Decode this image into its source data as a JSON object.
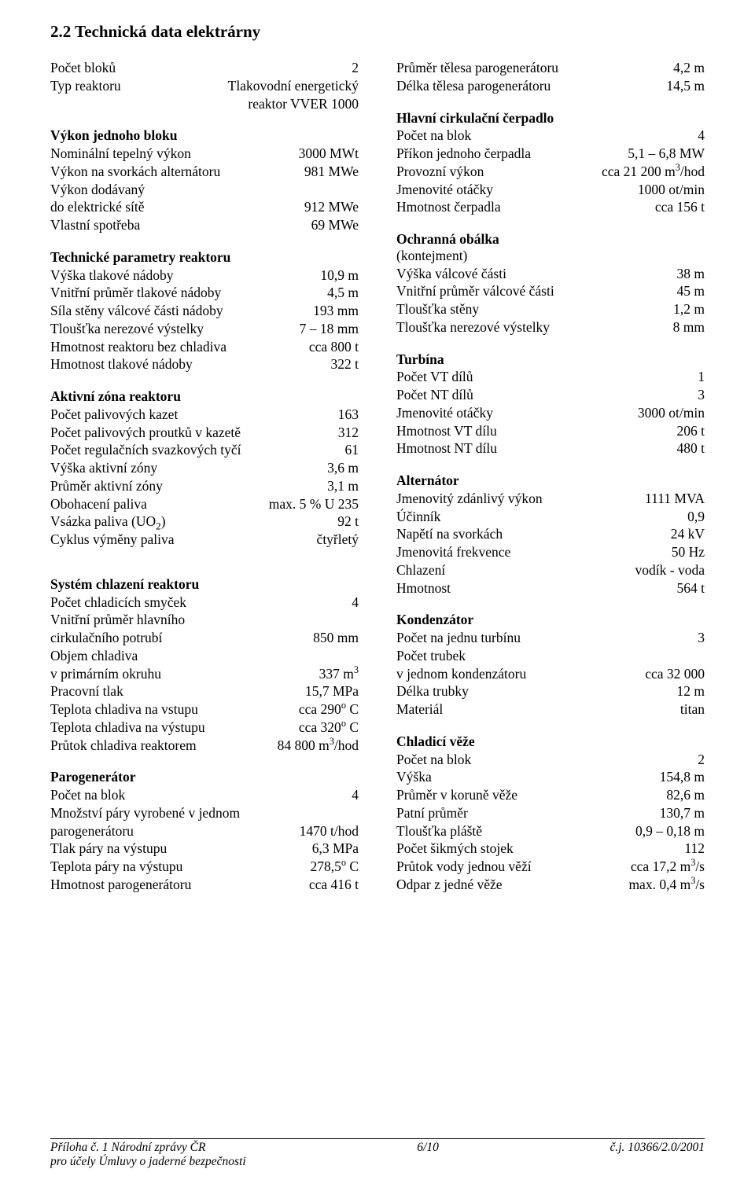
{
  "heading": "2.2   Technická data elektrárny",
  "left": {
    "intro": [
      {
        "label": "Počet bloků",
        "value": "2"
      },
      {
        "label": "Typ reaktoru",
        "value": "Tlakovodní energetický"
      },
      {
        "label": "",
        "value": "reaktor VVER 1000"
      }
    ],
    "vykon_bloku_title": "Výkon jednoho bloku",
    "vykon_bloku": [
      {
        "label": "Nominální tepelný výkon",
        "value": "3000 MWt"
      },
      {
        "label": "Výkon na svorkách alternátoru",
        "value": "981 MWe"
      },
      {
        "label": "Výkon dodávaný",
        "value": ""
      },
      {
        "label": "do elektrické sítě",
        "value": "912 MWe"
      },
      {
        "label": "Vlastní spotřeba",
        "value": "69 MWe"
      }
    ],
    "tech_par_title": "Technické parametry reaktoru",
    "tech_par": [
      {
        "label": "Výška tlakové nádoby",
        "value": "10,9 m"
      },
      {
        "label": "Vnitřní průměr tlakové nádoby",
        "value": "4,5 m"
      },
      {
        "label": "Síla stěny válcové části nádoby",
        "value": "193 mm"
      },
      {
        "label": "Tloušťka nerezové výstelky",
        "value": "7 – 18 mm"
      },
      {
        "label": "Hmotnost reaktoru bez chladiva",
        "value": "cca 800 t"
      },
      {
        "label": "Hmotnost tlakové nádoby",
        "value": "322 t"
      }
    ],
    "aktivni_title": "Aktivní zóna reaktoru",
    "aktivni": [
      {
        "label": "Počet palivových kazet",
        "value": "163"
      },
      {
        "label": "Počet palivových proutků v kazetě",
        "value": "312"
      },
      {
        "label": "Počet regulačních svazkových tyčí",
        "value": "61"
      },
      {
        "label": "Výška aktivní zóny",
        "value": "3,6 m"
      },
      {
        "label": "Průměr aktivní zóny",
        "value": "3,1 m"
      },
      {
        "label": "Obohacení paliva",
        "value": "max. 5 % U 235"
      },
      {
        "label": "Vsázka paliva (UO<sub>2</sub>)",
        "value": "92 t",
        "html": true
      },
      {
        "label": "Cyklus výměny paliva",
        "value": "čtyřletý"
      }
    ],
    "chlaz_title": "Systém chlazení reaktoru",
    "chlaz": [
      {
        "label": "Počet chladicích smyček",
        "value": "4"
      },
      {
        "label": "Vnitřní průměr hlavního",
        "value": ""
      },
      {
        "label": "cirkulačního potrubí",
        "value": "850 mm"
      },
      {
        "label": "Objem chladiva",
        "value": ""
      },
      {
        "label": "v primárním okruhu",
        "value": "337 m<sup>3</sup>",
        "html": true
      },
      {
        "label": "Pracovní tlak",
        "value": "15,7 MPa"
      },
      {
        "label": "Teplota chladiva na vstupu",
        "value": "cca 290<sup>o</sup>  C",
        "html": true
      },
      {
        "label": "Teplota chladiva na výstupu",
        "value": "cca 320<sup>o</sup> C",
        "html": true
      },
      {
        "label": "Průtok chladiva reaktorem",
        "value": "84 800 m<sup>3</sup>/hod",
        "html": true
      }
    ],
    "parogen_title": "Parogenerátor",
    "parogen": [
      {
        "label": "Počet na blok",
        "value": "4"
      },
      {
        "label": "Množství páry vyrobené v jednom",
        "value": ""
      },
      {
        "label": "parogenerátoru",
        "value": "1470 t/hod"
      },
      {
        "label": "Tlak páry na výstupu",
        "value": "6,3 MPa"
      },
      {
        "label": "Teplota páry na výstupu",
        "value": "278,5<sup>o</sup> C",
        "html": true
      },
      {
        "label": "Hmotnost parogenerátoru",
        "value": "cca 416 t"
      }
    ]
  },
  "right": {
    "parogen2": [
      {
        "label": "Průměr tělesa parogenerátoru",
        "value": "4,2 m"
      },
      {
        "label": "Délka tělesa parogenerátoru",
        "value": "14,5 m"
      }
    ],
    "hcc_title": "Hlavní cirkulační čerpadlo",
    "hcc": [
      {
        "label": "Počet na blok",
        "value": "4"
      },
      {
        "label": "Příkon jednoho čerpadla",
        "value": "5,1 – 6,8 MW"
      },
      {
        "label": "Provozní výkon",
        "value": "cca 21 200 m<sup>3</sup>/hod",
        "html": true
      },
      {
        "label": "Jmenovité otáčky",
        "value": "1000 ot/min"
      },
      {
        "label": "Hmotnost čerpadla",
        "value": "cca 156 t"
      }
    ],
    "obalka_title": "Ochranná obálka",
    "obalka_sub": "(kontejment)",
    "obalka": [
      {
        "label": "Výška válcové části",
        "value": "38 m"
      },
      {
        "label": "Vnitřní průměr válcové části",
        "value": "45 m"
      },
      {
        "label": "Tloušťka stěny",
        "value": "1,2 m"
      },
      {
        "label": "Tloušťka nerezové výstelky",
        "value": "8 mm"
      }
    ],
    "turbina_title": "Turbína",
    "turbina": [
      {
        "label": "Počet VT dílů",
        "value": "1"
      },
      {
        "label": "Počet NT dílů",
        "value": "3"
      },
      {
        "label": "Jmenovité otáčky",
        "value": "3000 ot/min"
      },
      {
        "label": "Hmotnost VT dílu",
        "value": "206 t"
      },
      {
        "label": "Hmotnost NT dílu",
        "value": "480 t"
      }
    ],
    "alt_title": "Alternátor",
    "alt": [
      {
        "label": "Jmenovitý zdánlivý výkon",
        "value": "1111 MVA"
      },
      {
        "label": "Účinník",
        "value": "0,9"
      },
      {
        "label": "Napětí na svorkách",
        "value": "24 kV"
      },
      {
        "label": "Jmenovitá frekvence",
        "value": "50 Hz"
      },
      {
        "label": "Chlazení",
        "value": "vodík - voda"
      },
      {
        "label": "Hmotnost",
        "value": "564 t"
      }
    ],
    "kond_title": "Kondenzátor",
    "kond": [
      {
        "label": "Počet na jednu turbínu",
        "value": "3"
      },
      {
        "label": "Počet trubek",
        "value": ""
      },
      {
        "label": "v jednom kondenzátoru",
        "value": "cca 32 000"
      },
      {
        "label": "Délka trubky",
        "value": "12 m"
      },
      {
        "label": "Materiál",
        "value": "titan"
      }
    ],
    "veze_title": "Chladicí věže",
    "veze": [
      {
        "label": "Počet na blok",
        "value": "2"
      },
      {
        "label": "Výška",
        "value": "154,8 m"
      },
      {
        "label": "Průměr v koruně věže",
        "value": "82,6 m"
      },
      {
        "label": "Patní průměr",
        "value": "130,7 m"
      },
      {
        "label": "Tloušťka pláště",
        "value": "0,9 – 0,18 m"
      },
      {
        "label": "Počet šikmých stojek",
        "value": "112"
      },
      {
        "label": "Průtok vody jednou věží",
        "value": "cca 17,2 m<sup>3</sup>/s",
        "html": true
      },
      {
        "label": "Odpar z jedné věže",
        "value": "max. 0,4 m<sup>3</sup>/s",
        "html": true
      }
    ]
  },
  "footer": {
    "left1": "Příloha č. 1 Národní zprávy ČR",
    "left2": "pro účely Úmluvy o jaderné bezpečnosti",
    "center": "6/10",
    "right": "č.j. 10366/2.0/2001"
  }
}
